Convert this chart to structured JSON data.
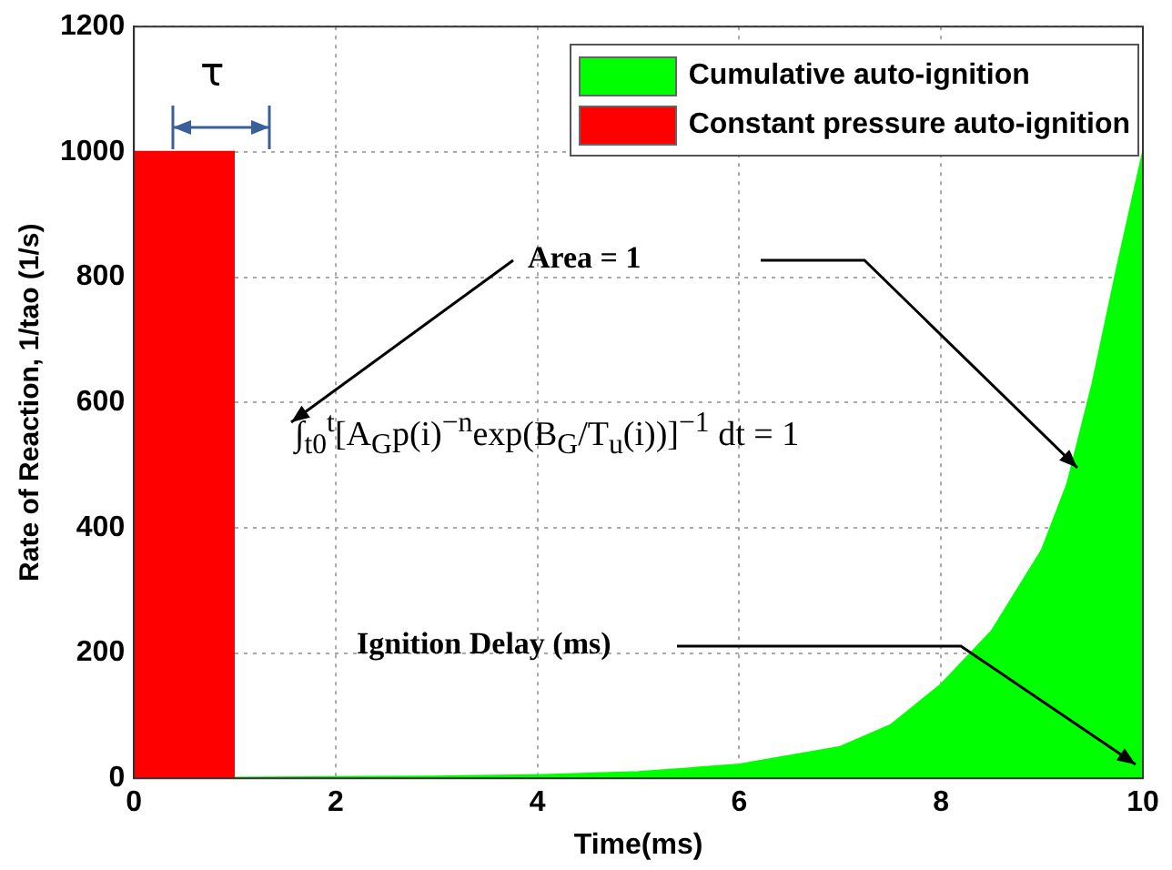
{
  "chart_data": {
    "type": "area",
    "xlabel": "Time(ms)",
    "ylabel": "Rate of Reaction, 1/tao (1/s)",
    "xlim": [
      0,
      10
    ],
    "xticks": [
      0,
      2,
      4,
      6,
      8,
      10
    ],
    "ylim": [
      0,
      1200
    ],
    "yticks": [
      0,
      200,
      400,
      600,
      800,
      1000,
      1200
    ],
    "grid": true,
    "legend": "top right",
    "series": [
      {
        "name": "Cumulative auto-ignition",
        "color": "#00ff00",
        "x": [
          1,
          2,
          3,
          4,
          5,
          6,
          7,
          7.5,
          8,
          8.5,
          9,
          9.25,
          9.5,
          9.75,
          10
        ],
        "values": [
          1,
          2,
          3,
          5,
          10,
          22,
          50,
          85,
          150,
          235,
          365,
          470,
          630,
          820,
          1000
        ]
      },
      {
        "name": "Constant pressure auto-ignition",
        "color": "#ff0000",
        "x": [
          0,
          1
        ],
        "values": [
          1000,
          1000
        ]
      }
    ],
    "annotations": [
      "τ",
      "Area = 1",
      "∫$_{t0}$$^{t}$[A$_{G}$p(i)$^{−n}$exp(B$_{G}$/T$_{u}$(i))]$^{−1}$ dt = 1",
      "Ignition Delay (ms)"
    ]
  }
}
